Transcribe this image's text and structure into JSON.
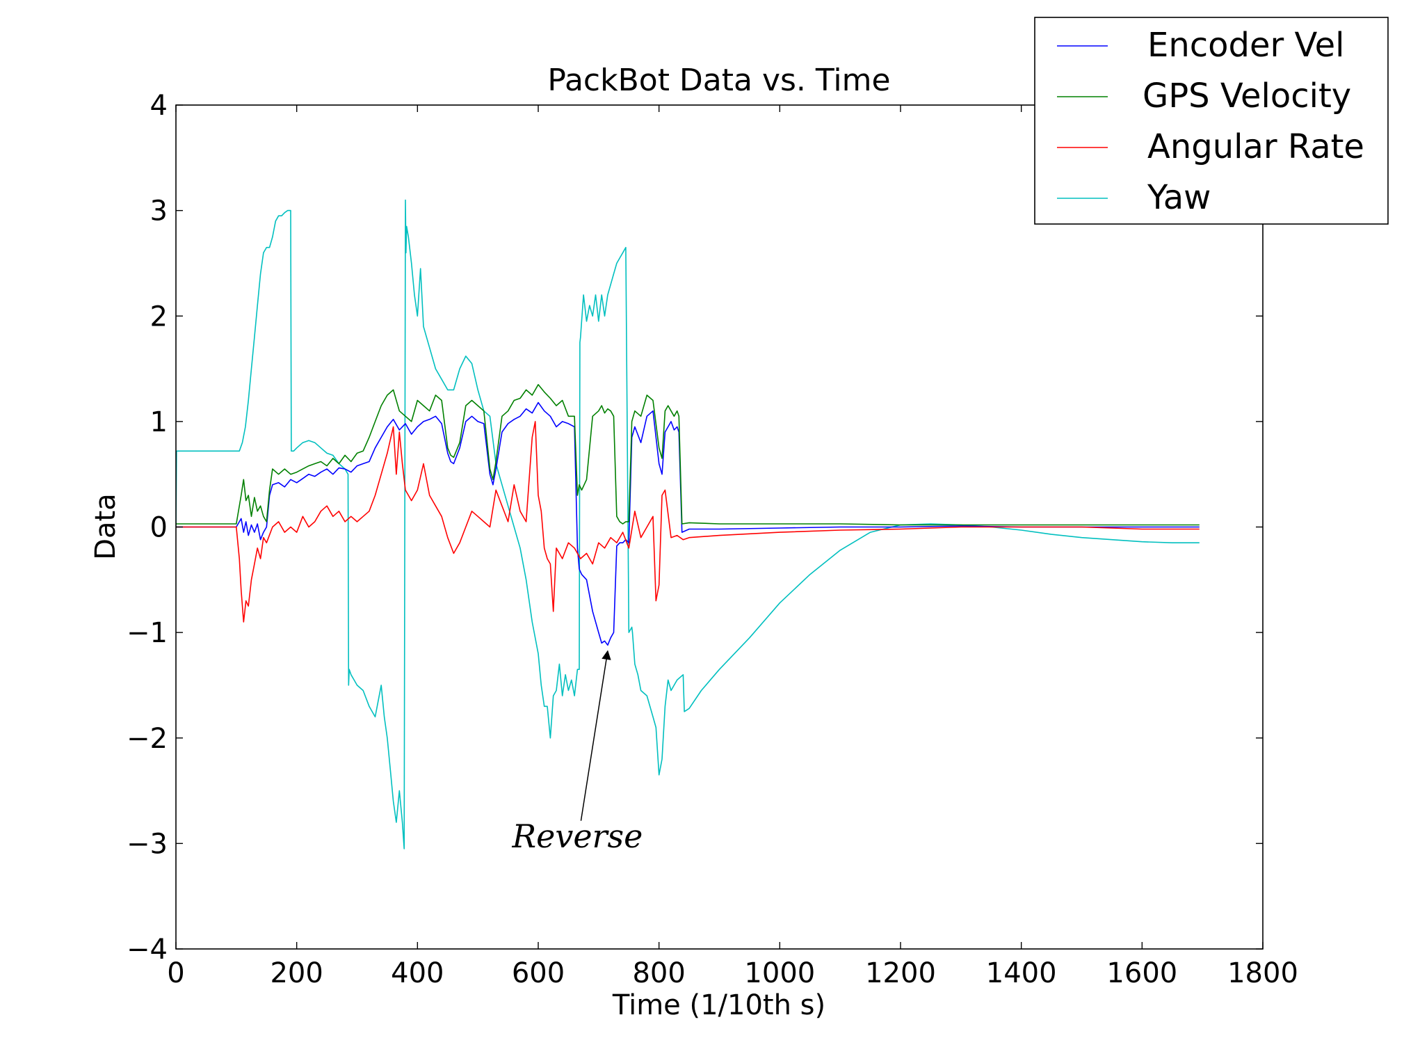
{
  "chart_data": {
    "type": "line",
    "title": "PackBot Data vs. Time",
    "xlabel": "Time (1/10th s)",
    "ylabel": "Data",
    "xlim": [
      0,
      1800
    ],
    "ylim": [
      -4,
      4
    ],
    "xticks": [
      0,
      200,
      400,
      600,
      800,
      1000,
      1200,
      1400,
      1600,
      1800
    ],
    "xtick_labels": [
      "0",
      "200",
      "400",
      "600",
      "800",
      "1000",
      "1200",
      "1400",
      "1600",
      "1800"
    ],
    "yticks": [
      4,
      3,
      2,
      1,
      0,
      -1,
      -2,
      -3,
      -4
    ],
    "ytick_labels": [
      "4",
      "3",
      "2",
      "1",
      "0",
      "−1",
      "−2",
      "−3",
      "−4"
    ],
    "grid": false,
    "legend_position": "top-right",
    "annotation": {
      "text": "Reverse",
      "text_at": [
        665,
        -2.93
      ],
      "arrow_to": [
        715,
        -1.15
      ]
    },
    "series": [
      {
        "name": "Encoder Vel",
        "color": "#0000ff",
        "x": [
          0,
          100,
          108,
          112,
          116,
          120,
          125,
          130,
          135,
          140,
          145,
          150,
          155,
          160,
          170,
          180,
          190,
          200,
          210,
          220,
          230,
          240,
          250,
          260,
          270,
          280,
          290,
          300,
          310,
          320,
          330,
          340,
          350,
          360,
          370,
          380,
          390,
          400,
          410,
          420,
          430,
          440,
          450,
          455,
          460,
          470,
          480,
          490,
          500,
          510,
          520,
          525,
          530,
          540,
          550,
          560,
          570,
          580,
          590,
          600,
          610,
          620,
          630,
          640,
          650,
          660,
          665,
          668,
          672,
          680,
          690,
          700,
          705,
          710,
          715,
          720,
          725,
          730,
          735,
          740,
          745,
          750,
          755,
          760,
          770,
          780,
          790,
          800,
          805,
          810,
          815,
          820,
          825,
          830,
          833,
          838,
          850,
          900,
          1000,
          1100,
          1200,
          1300,
          1400,
          1500,
          1600,
          1695
        ],
        "y": [
          0.0,
          0.0,
          0.08,
          -0.05,
          0.05,
          -0.08,
          0.02,
          -0.05,
          0.03,
          -0.12,
          -0.05,
          0.0,
          0.3,
          0.4,
          0.42,
          0.38,
          0.45,
          0.42,
          0.46,
          0.5,
          0.48,
          0.52,
          0.55,
          0.5,
          0.56,
          0.55,
          0.52,
          0.58,
          0.6,
          0.62,
          0.75,
          0.85,
          0.95,
          1.02,
          0.92,
          0.98,
          0.88,
          0.95,
          1.0,
          1.02,
          1.05,
          0.98,
          0.7,
          0.62,
          0.6,
          0.75,
          1.0,
          1.05,
          1.0,
          0.98,
          0.5,
          0.4,
          0.55,
          0.9,
          0.98,
          1.02,
          1.05,
          1.12,
          1.08,
          1.18,
          1.1,
          1.05,
          0.95,
          1.0,
          0.98,
          0.95,
          -0.2,
          -0.4,
          -0.45,
          -0.5,
          -0.8,
          -1.0,
          -1.1,
          -1.08,
          -1.12,
          -1.05,
          -1.0,
          -0.18,
          -0.15,
          -0.15,
          -0.12,
          -0.15,
          0.85,
          0.95,
          0.8,
          1.05,
          1.1,
          0.6,
          0.5,
          0.9,
          0.95,
          1.0,
          0.92,
          0.95,
          0.9,
          -0.05,
          -0.02,
          -0.02,
          -0.01,
          0.0,
          0.0,
          0.01,
          0.0,
          0.0,
          0.0,
          0.0
        ]
      },
      {
        "name": "GPS Velocity",
        "color": "#008000",
        "x": [
          0,
          100,
          108,
          112,
          116,
          120,
          125,
          130,
          135,
          140,
          145,
          150,
          155,
          160,
          170,
          180,
          190,
          200,
          210,
          220,
          230,
          240,
          250,
          260,
          270,
          280,
          290,
          300,
          310,
          320,
          330,
          340,
          350,
          360,
          370,
          380,
          390,
          400,
          410,
          420,
          430,
          440,
          450,
          455,
          460,
          470,
          480,
          490,
          500,
          510,
          520,
          525,
          530,
          540,
          550,
          560,
          570,
          580,
          590,
          600,
          610,
          620,
          630,
          640,
          650,
          660,
          665,
          668,
          672,
          680,
          690,
          700,
          705,
          710,
          715,
          720,
          725,
          730,
          735,
          740,
          745,
          750,
          755,
          760,
          770,
          780,
          790,
          800,
          805,
          810,
          815,
          820,
          825,
          830,
          833,
          838,
          850,
          900,
          1000,
          1100,
          1200,
          1300,
          1400,
          1500,
          1600,
          1695
        ],
        "y": [
          0.03,
          0.03,
          0.3,
          0.45,
          0.25,
          0.3,
          0.1,
          0.28,
          0.15,
          0.2,
          0.1,
          0.05,
          0.35,
          0.55,
          0.5,
          0.55,
          0.5,
          0.52,
          0.55,
          0.58,
          0.6,
          0.62,
          0.58,
          0.65,
          0.6,
          0.68,
          0.62,
          0.7,
          0.72,
          0.85,
          1.0,
          1.15,
          1.25,
          1.3,
          1.1,
          1.05,
          1.0,
          1.2,
          1.15,
          1.1,
          1.25,
          1.2,
          0.75,
          0.68,
          0.66,
          0.8,
          1.15,
          1.2,
          1.15,
          1.1,
          0.55,
          0.45,
          0.62,
          1.05,
          1.1,
          1.2,
          1.22,
          1.3,
          1.25,
          1.35,
          1.28,
          1.22,
          1.15,
          1.2,
          1.05,
          1.05,
          0.3,
          0.4,
          0.35,
          0.45,
          1.05,
          1.1,
          1.15,
          1.08,
          1.12,
          1.1,
          1.05,
          0.1,
          0.05,
          0.03,
          0.05,
          0.05,
          1.0,
          1.1,
          1.05,
          1.25,
          1.2,
          0.75,
          0.65,
          1.1,
          1.15,
          1.1,
          1.05,
          1.1,
          1.05,
          0.03,
          0.04,
          0.03,
          0.03,
          0.03,
          0.02,
          0.02,
          0.02,
          0.02,
          0.02,
          0.02
        ]
      },
      {
        "name": "Angular Rate",
        "color": "#ff0000",
        "x": [
          0,
          100,
          105,
          108,
          112,
          116,
          120,
          125,
          130,
          135,
          140,
          145,
          150,
          160,
          170,
          180,
          190,
          200,
          210,
          220,
          230,
          240,
          250,
          260,
          270,
          280,
          290,
          300,
          310,
          320,
          330,
          340,
          350,
          360,
          365,
          370,
          375,
          380,
          390,
          400,
          410,
          420,
          430,
          440,
          450,
          460,
          470,
          480,
          490,
          500,
          510,
          520,
          530,
          540,
          550,
          560,
          570,
          580,
          590,
          595,
          600,
          605,
          610,
          615,
          620,
          625,
          630,
          640,
          650,
          660,
          670,
          680,
          690,
          700,
          710,
          720,
          730,
          740,
          750,
          760,
          770,
          780,
          790,
          795,
          800,
          805,
          810,
          820,
          830,
          840,
          850,
          900,
          1000,
          1100,
          1200,
          1300,
          1400,
          1500,
          1600,
          1695
        ],
        "y": [
          0.0,
          0.0,
          -0.3,
          -0.6,
          -0.9,
          -0.7,
          -0.75,
          -0.5,
          -0.35,
          -0.2,
          -0.3,
          -0.1,
          -0.15,
          0.0,
          0.05,
          -0.05,
          0.0,
          -0.05,
          0.1,
          0.0,
          0.05,
          0.15,
          0.2,
          0.1,
          0.15,
          0.05,
          0.1,
          0.05,
          0.1,
          0.15,
          0.3,
          0.5,
          0.7,
          0.95,
          0.5,
          0.9,
          0.6,
          0.35,
          0.25,
          0.35,
          0.6,
          0.3,
          0.2,
          0.1,
          -0.1,
          -0.25,
          -0.15,
          0.0,
          0.15,
          0.1,
          0.05,
          0.0,
          0.35,
          0.2,
          0.05,
          0.4,
          0.15,
          0.05,
          0.85,
          1.0,
          0.3,
          0.15,
          -0.2,
          -0.3,
          -0.35,
          -0.8,
          -0.2,
          -0.3,
          -0.15,
          -0.2,
          -0.3,
          -0.25,
          -0.35,
          -0.15,
          -0.2,
          -0.1,
          -0.15,
          -0.05,
          -0.2,
          0.15,
          -0.1,
          0.0,
          0.1,
          -0.7,
          -0.55,
          0.3,
          0.35,
          -0.1,
          -0.08,
          -0.12,
          -0.1,
          -0.08,
          -0.05,
          -0.03,
          -0.02,
          0.0,
          0.0,
          0.0,
          -0.02,
          -0.02
        ]
      },
      {
        "name": "Yaw",
        "color": "#00bfbf",
        "x": [
          0,
          1,
          100,
          105,
          110,
          115,
          120,
          125,
          130,
          135,
          140,
          145,
          150,
          155,
          160,
          165,
          170,
          175,
          180,
          185,
          190,
          191,
          195,
          200,
          210,
          220,
          230,
          240,
          250,
          260,
          270,
          280,
          285,
          286,
          287,
          290,
          295,
          300,
          310,
          320,
          330,
          340,
          345,
          350,
          355,
          360,
          365,
          370,
          375,
          378,
          380,
          381,
          382,
          385,
          390,
          395,
          400,
          405,
          410,
          420,
          430,
          440,
          450,
          460,
          470,
          480,
          490,
          500,
          510,
          520,
          530,
          540,
          550,
          560,
          570,
          580,
          590,
          600,
          605,
          610,
          615,
          620,
          625,
          630,
          635,
          640,
          645,
          650,
          655,
          660,
          665,
          668,
          669,
          670,
          675,
          680,
          685,
          690,
          695,
          700,
          705,
          710,
          715,
          720,
          725,
          730,
          735,
          740,
          745,
          750,
          755,
          756,
          760,
          765,
          770,
          780,
          790,
          795,
          800,
          805,
          810,
          815,
          820,
          830,
          840,
          842,
          850,
          870,
          900,
          950,
          1000,
          1050,
          1100,
          1150,
          1200,
          1250,
          1300,
          1350,
          1400,
          1450,
          1500,
          1550,
          1600,
          1650,
          1695
        ],
        "y": [
          0.0,
          0.72,
          0.72,
          0.72,
          0.8,
          0.95,
          1.2,
          1.5,
          1.8,
          2.1,
          2.4,
          2.6,
          2.65,
          2.65,
          2.75,
          2.9,
          2.95,
          2.95,
          2.98,
          3.0,
          3.0,
          0.72,
          0.72,
          0.75,
          0.8,
          0.82,
          0.8,
          0.75,
          0.7,
          0.68,
          0.6,
          0.55,
          0.5,
          -1.5,
          -1.35,
          -1.4,
          -1.45,
          -1.5,
          -1.55,
          -1.7,
          -1.8,
          -1.5,
          -1.8,
          -2.0,
          -2.3,
          -2.6,
          -2.8,
          -2.5,
          -2.8,
          -3.05,
          3.1,
          2.6,
          2.85,
          2.75,
          2.5,
          2.2,
          2.0,
          2.45,
          1.9,
          1.7,
          1.5,
          1.4,
          1.3,
          1.3,
          1.5,
          1.62,
          1.55,
          1.3,
          1.1,
          1.05,
          0.6,
          0.4,
          0.2,
          0.0,
          -0.2,
          -0.5,
          -0.9,
          -1.2,
          -1.5,
          -1.7,
          -1.7,
          -2.0,
          -1.6,
          -1.55,
          -1.3,
          -1.6,
          -1.4,
          -1.55,
          -1.45,
          -1.6,
          -1.35,
          -1.35,
          1.75,
          1.8,
          2.2,
          1.95,
          2.1,
          2.0,
          2.2,
          1.95,
          2.2,
          2.0,
          2.2,
          2.3,
          2.4,
          2.5,
          2.55,
          2.6,
          2.65,
          -1.0,
          -0.95,
          -1.0,
          -1.3,
          -1.4,
          -1.55,
          -1.6,
          -1.8,
          -1.9,
          -2.35,
          -2.2,
          -1.7,
          -1.45,
          -1.55,
          -1.45,
          -1.4,
          -1.75,
          -1.72,
          -1.55,
          -1.35,
          -1.05,
          -0.72,
          -0.45,
          -0.22,
          -0.05,
          0.02,
          0.03,
          0.02,
          0.0,
          -0.03,
          -0.07,
          -0.1,
          -0.12,
          -0.14,
          -0.15,
          -0.15
        ]
      }
    ]
  }
}
